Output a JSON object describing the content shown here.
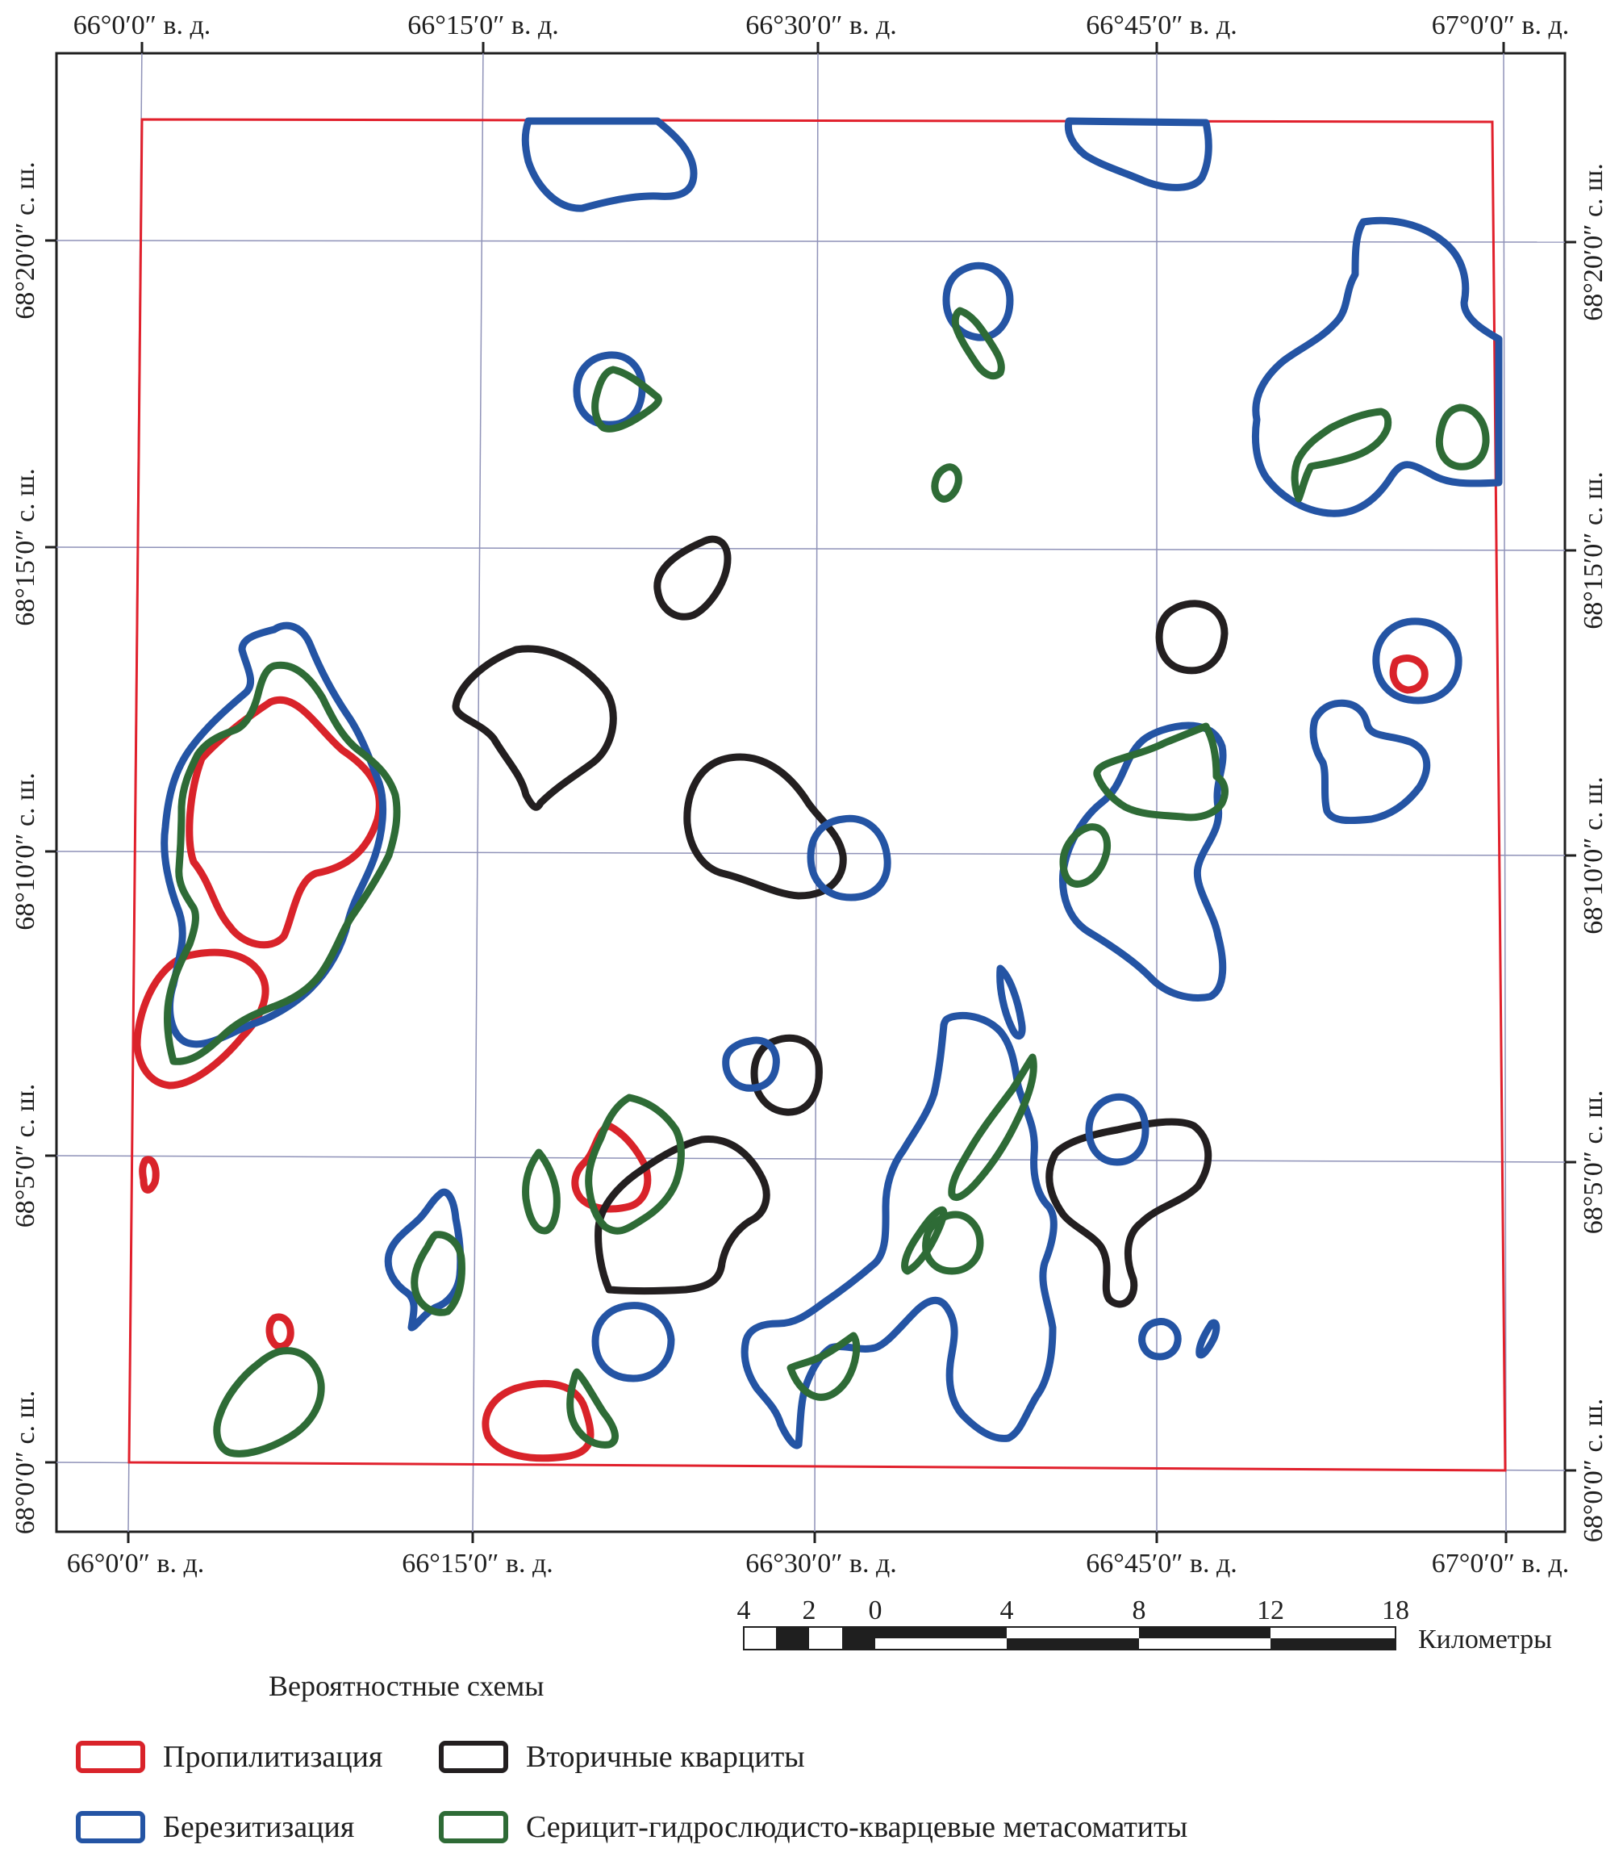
{
  "map": {
    "lon_labels": [
      "66°0′0″ в. д.",
      "66°15′0″ в. д.",
      "66°30′0″ в. д.",
      "66°45′0″ в. д.",
      "67°0′0″ в. д."
    ],
    "lat_labels": [
      "68°20′0″ с. ш.",
      "68°15′0″ с. ш.",
      "68°10′0″ с. ш.",
      "68°5′0″ с. ш.",
      "68°0′0″ с. ш."
    ]
  },
  "scale_bar": {
    "ticks": [
      "4",
      "2",
      "0",
      "4",
      "8",
      "12",
      "18"
    ],
    "unit": "Километры"
  },
  "legend": {
    "title": "Вероятностные схемы",
    "items": [
      {
        "label": "Пропилитизация",
        "color": "#d9232a"
      },
      {
        "label": "Вторичные кварциты",
        "color": "#231f20"
      },
      {
        "label": "Березитизация",
        "color": "#2454a4"
      },
      {
        "label": "Серицит-гидрослюдисто-кварцевые метасоматиты",
        "color": "#2e6b36"
      }
    ]
  },
  "colors": {
    "frame": "#1f1f1f",
    "graticule": "#8f92b8",
    "boundary": "#e1202c",
    "propylitization": "#d9232a",
    "secondary_quartzites": "#231f20",
    "beresitization": "#2454a4",
    "sericite_metasomatites": "#2e6b36"
  }
}
